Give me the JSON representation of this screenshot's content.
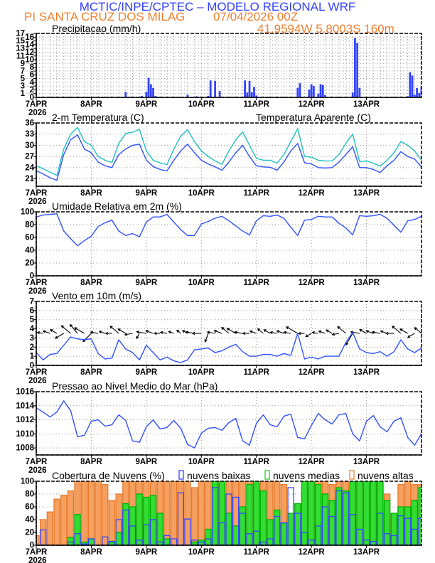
{
  "header": {
    "title": "MCTIC/INPE/CPTEC – MODELO REGIONAL WRF",
    "station": "PI SANTA CRUZ DOS MILAG",
    "run": "07/04/2026 00Z",
    "location": "41.9594W 5.8003S 160m"
  },
  "colors": {
    "header_title": "#3340ff",
    "header_sub": "#f08030",
    "low_clouds": "#3344ff",
    "medium_clouds": "#22cc22",
    "high_clouds": "#f5a060",
    "temperature": "#3050ff",
    "apparent_temperature": "#20c0c0"
  },
  "time_axis": {
    "start": "2026-04-07T00",
    "end": "2026-04-14T00",
    "tick_labels": [
      "7APR",
      "8APR",
      "9APR",
      "10APR",
      "11APR",
      "12APR",
      "13APR"
    ],
    "year_label": "2026"
  },
  "chart_data": [
    {
      "type": "bar",
      "title": "Precipitacao (mm/h)",
      "ylim": [
        0,
        17
      ],
      "yticks": [
        0,
        1,
        2,
        3,
        4,
        5,
        6,
        7,
        8,
        9,
        10,
        11,
        12,
        13,
        14,
        15,
        16,
        17
      ],
      "grid": true,
      "color": "#3344ff",
      "bars": [
        {
          "time": "2026-04-08T15",
          "value": 1.5
        },
        {
          "time": "2026-04-08T17",
          "value": 0.2
        },
        {
          "time": "2026-04-08T22",
          "value": 0.4
        },
        {
          "time": "2026-04-09T00",
          "value": 1.5
        },
        {
          "time": "2026-04-09T01",
          "value": 5.2
        },
        {
          "time": "2026-04-09T02",
          "value": 3.5
        },
        {
          "time": "2026-04-09T03",
          "value": 2.5
        },
        {
          "time": "2026-04-09T04",
          "value": 0.4
        },
        {
          "time": "2026-04-09T18",
          "value": 0.7
        },
        {
          "time": "2026-04-09T22",
          "value": 0.3
        },
        {
          "time": "2026-04-10T03",
          "value": 0.4
        },
        {
          "time": "2026-04-10T04",
          "value": 4.5
        },
        {
          "time": "2026-04-10T06",
          "value": 4.4
        },
        {
          "time": "2026-04-10T08",
          "value": 1.7
        },
        {
          "time": "2026-04-10T19",
          "value": 4.5
        },
        {
          "time": "2026-04-10T20",
          "value": 1.3
        },
        {
          "time": "2026-04-10T21",
          "value": 4.4
        },
        {
          "time": "2026-04-10T22",
          "value": 1.4
        },
        {
          "time": "2026-04-10T23",
          "value": 2.8
        },
        {
          "time": "2026-04-11T00",
          "value": 0.5
        },
        {
          "time": "2026-04-11T18",
          "value": 2.5
        },
        {
          "time": "2026-04-11T19",
          "value": 3.8
        },
        {
          "time": "2026-04-11T23",
          "value": 2.1
        },
        {
          "time": "2026-04-12T00",
          "value": 3.5
        },
        {
          "time": "2026-04-12T01",
          "value": 3.0
        },
        {
          "time": "2026-04-12T03",
          "value": 1.0
        },
        {
          "time": "2026-04-12T04",
          "value": 3.5
        },
        {
          "time": "2026-04-12T05",
          "value": 3.3
        },
        {
          "time": "2026-04-12T06",
          "value": 0.6
        },
        {
          "time": "2026-04-12T18",
          "value": 1.3
        },
        {
          "time": "2026-04-12T19",
          "value": 15.8
        },
        {
          "time": "2026-04-12T20",
          "value": 14.5
        },
        {
          "time": "2026-04-12T21",
          "value": 2.5
        },
        {
          "time": "2026-04-13T06",
          "value": 0.2
        },
        {
          "time": "2026-04-13T18",
          "value": 0.3
        },
        {
          "time": "2026-04-13T19",
          "value": 6.7
        },
        {
          "time": "2026-04-13T20",
          "value": 5.8
        },
        {
          "time": "2026-04-13T21",
          "value": 0.7
        },
        {
          "time": "2026-04-13T22",
          "value": 2.5
        },
        {
          "time": "2026-04-13T23",
          "value": 1.2
        },
        {
          "time": "2026-04-14T00",
          "value": 2.8
        }
      ]
    },
    {
      "type": "line",
      "title": "2-m Temperatura (C)",
      "ylim": [
        19,
        36
      ],
      "yticks": [
        21,
        24,
        27,
        30,
        33,
        36
      ],
      "grid": true,
      "start": "2026-04-07T00",
      "interval_hours": 3,
      "series": [
        {
          "name": "2-m Temperatura (C)",
          "color": "#3050ff",
          "values": [
            23.2,
            22.3,
            21.3,
            20.6,
            27.5,
            31.5,
            32.8,
            29,
            28,
            25.5,
            24.5,
            24,
            27.5,
            29,
            30,
            30.3,
            26,
            24.3,
            23.5,
            23.1,
            26,
            28.5,
            30.3,
            28,
            26,
            25,
            24.2,
            23.3,
            25.5,
            28,
            30,
            27,
            24.5,
            24.2,
            24.1,
            23.3,
            25.5,
            28.5,
            30.5,
            25.3,
            25,
            24,
            23.9,
            24,
            25.5,
            27.5,
            29.6,
            24,
            24,
            23.5,
            22.7,
            24.5,
            26,
            28.3,
            27,
            26.3,
            24.2
          ]
        },
        {
          "name": "Temperatura Aparente (C)",
          "color": "#20c0c0",
          "values": [
            24.5,
            23.7,
            22.8,
            21.9,
            29,
            33,
            34.8,
            31,
            30,
            27,
            26,
            25.4,
            30.5,
            33.2,
            33.5,
            34.3,
            28.5,
            26,
            25.3,
            24.8,
            29,
            32.5,
            34.2,
            31,
            28.5,
            27,
            25.8,
            24.9,
            28.5,
            31.5,
            33.6,
            30,
            26.5,
            26,
            26,
            25.2,
            27.5,
            31,
            34.5,
            27,
            26.8,
            26,
            25.8,
            25.8,
            27.5,
            30.5,
            33,
            25.6,
            25.8,
            25.2,
            24.4,
            26,
            28,
            31,
            30,
            28.5,
            26
          ]
        }
      ]
    },
    {
      "type": "line",
      "title": "Umidade Relativa em 2m (%)",
      "ylim": [
        0,
        100
      ],
      "yticks": [
        0,
        20,
        40,
        60,
        80,
        100
      ],
      "grid": true,
      "start": "2026-04-07T00",
      "interval_hours": 3,
      "series": [
        {
          "color": "#3050ff",
          "values": [
            92,
            95,
            96,
            97,
            70,
            58,
            47,
            55,
            62,
            77,
            83,
            87,
            70,
            63,
            66,
            61,
            84,
            92,
            92,
            96,
            84,
            72,
            63,
            63,
            81,
            85,
            90,
            93,
            86,
            78,
            70,
            64,
            86,
            94,
            93,
            95,
            90,
            76,
            63,
            87,
            88,
            93,
            92,
            92,
            82,
            75,
            64,
            94,
            93,
            94,
            96,
            90,
            79,
            68,
            86,
            88,
            93
          ]
        }
      ]
    },
    {
      "type": "line",
      "title": "Vento em 10m (m/s)",
      "ylim": [
        0,
        7
      ],
      "yticks": [
        0,
        1,
        2,
        3,
        4,
        5,
        6,
        7
      ],
      "grid": true,
      "start": "2026-04-07T00",
      "interval_hours": 3,
      "series": [
        {
          "color": "#3050ff",
          "values": [
            1.4,
            0.6,
            1.2,
            1.3,
            2.2,
            3.1,
            2.9,
            2.8,
            2.9,
            1.3,
            0.7,
            0.8,
            2.8,
            1.8,
            1.4,
            0.6,
            2.2,
            1.4,
            0.6,
            0.9,
            0.5,
            0.3,
            0.6,
            1.7,
            1.8,
            1.9,
            1.4,
            1.6,
            2.0,
            2.3,
            1.5,
            1.0,
            1.0,
            1.2,
            1.2,
            1.0,
            1.3,
            1.1,
            3.5,
            0.7,
            0.9,
            0.7,
            1.0,
            1.0,
            1.0,
            2.5,
            3.6,
            1.8,
            1.4,
            1.3,
            1.5,
            1.0,
            1.5,
            2.8,
            1.8,
            1.4,
            1.9
          ]
        }
      ],
      "wind_direction_deg": [
        80,
        100,
        110,
        120,
        60,
        130,
        140,
        120,
        45,
        100,
        110,
        90,
        130,
        120,
        80,
        30,
        100,
        110,
        90,
        100,
        110,
        130,
        120,
        100,
        90,
        20,
        100,
        110,
        130,
        120,
        100,
        90,
        110,
        130,
        120,
        100,
        110,
        100,
        120,
        90,
        60,
        100,
        110,
        120,
        80,
        130,
        30,
        100,
        120,
        110,
        100,
        110,
        90,
        130,
        120,
        60,
        130
      ]
    },
    {
      "type": "line",
      "title": "Pressao ao Nivel Medio do Mar (hPa)",
      "ylim": [
        1007,
        1016
      ],
      "yticks": [
        1008,
        1010,
        1012,
        1014,
        1016
      ],
      "grid": true,
      "start": "2026-04-07T00",
      "interval_hours": 3,
      "series": [
        {
          "color": "#3050ff",
          "values": [
            1013.7,
            1013.1,
            1012.4,
            1013.1,
            1014.7,
            1013.3,
            1009.6,
            1009.8,
            1011.8,
            1012.0,
            1011.1,
            1011.3,
            1012.7,
            1011.9,
            1009.0,
            1008.8,
            1011.0,
            1012.0,
            1010.7,
            1010.9,
            1011.9,
            1010.8,
            1008.5,
            1008.0,
            1010.1,
            1010.8,
            1010.9,
            1010.5,
            1011.6,
            1012.2,
            1009.0,
            1008.4,
            1011.5,
            1012.7,
            1011.3,
            1011.0,
            1012.5,
            1012.8,
            1009.5,
            1009.3,
            1011.2,
            1012.9,
            1012.0,
            1011.4,
            1012.7,
            1012.9,
            1010.0,
            1009.0,
            1011.8,
            1012.6,
            1011.0,
            1010.3,
            1011.8,
            1012.3,
            1009.5,
            1008.4,
            1010.0
          ]
        }
      ]
    },
    {
      "type": "bar",
      "title": "Cobertura de Nuvens (%)",
      "ylim": [
        0,
        100
      ],
      "yticks": [
        0,
        20,
        40,
        60,
        80,
        100
      ],
      "grid": true,
      "legend": "top",
      "start": "2026-04-07T00",
      "interval_hours": 3,
      "series": [
        {
          "name": "nuvens altas",
          "color": "#f5a060",
          "values": [
            15,
            40,
            52,
            72,
            78,
            85,
            100,
            100,
            100,
            100,
            95,
            70,
            80,
            100,
            100,
            100,
            100,
            100,
            100,
            100,
            100,
            100,
            100,
            90,
            100,
            100,
            100,
            100,
            100,
            100,
            100,
            100,
            100,
            100,
            100,
            100,
            95,
            20,
            20,
            85,
            100,
            100,
            100,
            95,
            100,
            100,
            100,
            100,
            100,
            100,
            100,
            80,
            45,
            95,
            100,
            95,
            95
          ]
        },
        {
          "name": "nuvens medias",
          "color": "#22cc22",
          "values": [
            0,
            0,
            0,
            0,
            0,
            12,
            48,
            5,
            10,
            0,
            0,
            5,
            20,
            65,
            60,
            80,
            75,
            78,
            50,
            10,
            0,
            0,
            0,
            5,
            8,
            25,
            100,
            100,
            50,
            30,
            60,
            95,
            100,
            85,
            40,
            55,
            35,
            50,
            65,
            100,
            100,
            95,
            80,
            70,
            90,
            85,
            100,
            100,
            100,
            100,
            100,
            70,
            50,
            60,
            60,
            70,
            90
          ]
        },
        {
          "name": "nuvens baixas",
          "color": "#3344ff",
          "values": [
            0,
            24,
            0,
            0,
            0,
            5,
            18,
            2,
            10,
            0,
            13,
            6,
            40,
            55,
            30,
            8,
            32,
            40,
            5,
            15,
            10,
            82,
            41,
            8,
            5,
            10,
            90,
            35,
            80,
            75,
            50,
            18,
            22,
            5,
            10,
            45,
            35,
            90,
            50,
            20,
            8,
            30,
            60,
            45,
            85,
            82,
            48,
            25,
            8,
            6,
            50,
            18,
            15,
            46,
            42,
            25,
            42
          ]
        }
      ]
    }
  ]
}
